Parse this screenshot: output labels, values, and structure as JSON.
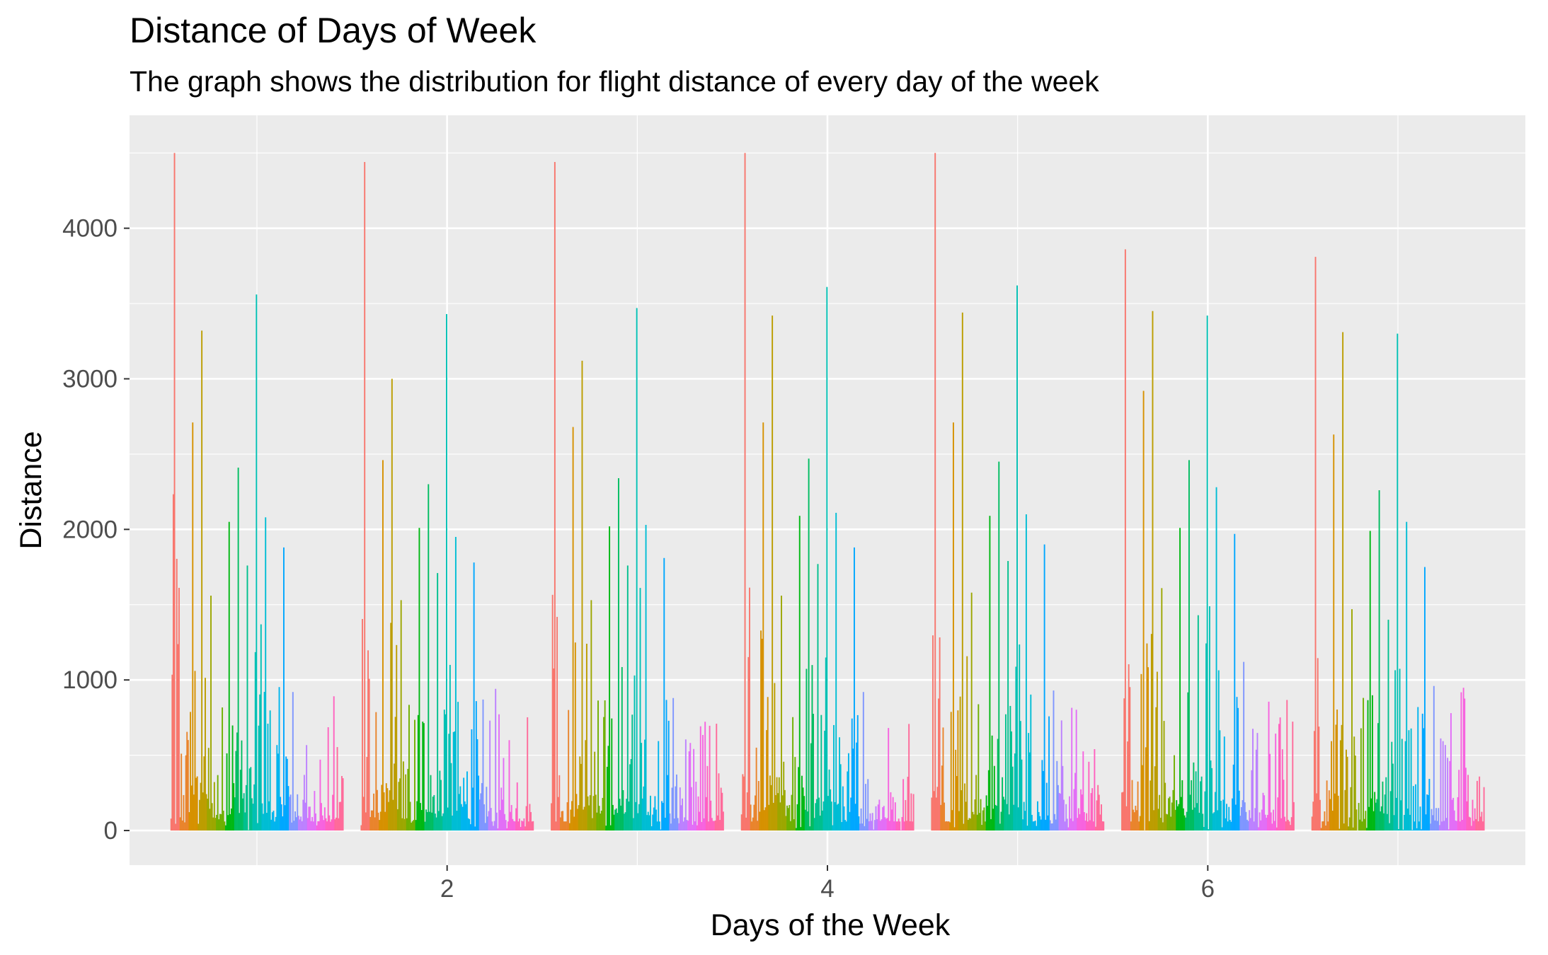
{
  "chart_data": {
    "type": "bar",
    "title": "Distance of Days of Week",
    "subtitle": "The graph shows the distribution for flight distance of every day of the week",
    "xlabel": "Days of the Week",
    "ylabel": "Distance",
    "xlim": [
      0.33,
      7.67
    ],
    "ylim": [
      -230,
      4750
    ],
    "x_ticks": [
      2,
      4,
      6
    ],
    "y_ticks": [
      0,
      1000,
      2000,
      3000,
      4000
    ],
    "grid": true,
    "legend": "none",
    "color_by": "hour",
    "hours": [
      5,
      6,
      7,
      8,
      9,
      10,
      11,
      12,
      13,
      14,
      15,
      16,
      17,
      18,
      19,
      20,
      21,
      22,
      23
    ],
    "days": [
      {
        "day": 1,
        "peaks": [
          {
            "hour": 5,
            "value": 4500
          },
          {
            "hour": 7,
            "value": 2710
          },
          {
            "hour": 8,
            "value": 3320
          },
          {
            "hour": 9,
            "value": 1560
          },
          {
            "hour": 11,
            "value": 2050
          },
          {
            "hour": 12,
            "value": 2410
          },
          {
            "hour": 13,
            "value": 1760
          },
          {
            "hour": 14,
            "value": 3560
          },
          {
            "hour": 15,
            "value": 2080
          },
          {
            "hour": 17,
            "value": 1880
          },
          {
            "hour": 18,
            "value": 920
          }
        ]
      },
      {
        "day": 2,
        "peaks": [
          {
            "hour": 5,
            "value": 4440
          },
          {
            "hour": 7,
            "value": 2460
          },
          {
            "hour": 8,
            "value": 3000
          },
          {
            "hour": 9,
            "value": 1530
          },
          {
            "hour": 11,
            "value": 2010
          },
          {
            "hour": 12,
            "value": 2300
          },
          {
            "hour": 13,
            "value": 1710
          },
          {
            "hour": 14,
            "value": 3430
          },
          {
            "hour": 15,
            "value": 1950
          },
          {
            "hour": 17,
            "value": 1780
          },
          {
            "hour": 18,
            "value": 870
          }
        ]
      },
      {
        "day": 3,
        "peaks": [
          {
            "hour": 5,
            "value": 4440
          },
          {
            "hour": 7,
            "value": 2680
          },
          {
            "hour": 8,
            "value": 3120
          },
          {
            "hour": 9,
            "value": 1530
          },
          {
            "hour": 11,
            "value": 2020
          },
          {
            "hour": 12,
            "value": 2340
          },
          {
            "hour": 13,
            "value": 1760
          },
          {
            "hour": 14,
            "value": 3470
          },
          {
            "hour": 15,
            "value": 2030
          },
          {
            "hour": 17,
            "value": 1810
          },
          {
            "hour": 18,
            "value": 880
          }
        ]
      },
      {
        "day": 4,
        "peaks": [
          {
            "hour": 5,
            "value": 4500
          },
          {
            "hour": 7,
            "value": 2710
          },
          {
            "hour": 8,
            "value": 3420
          },
          {
            "hour": 9,
            "value": 1560
          },
          {
            "hour": 11,
            "value": 2090
          },
          {
            "hour": 12,
            "value": 2470
          },
          {
            "hour": 13,
            "value": 1770
          },
          {
            "hour": 14,
            "value": 3610
          },
          {
            "hour": 15,
            "value": 2110
          },
          {
            "hour": 17,
            "value": 1880
          },
          {
            "hour": 18,
            "value": 920
          }
        ]
      },
      {
        "day": 5,
        "peaks": [
          {
            "hour": 5,
            "value": 4500
          },
          {
            "hour": 7,
            "value": 2710
          },
          {
            "hour": 8,
            "value": 3440
          },
          {
            "hour": 9,
            "value": 1580
          },
          {
            "hour": 11,
            "value": 2090
          },
          {
            "hour": 12,
            "value": 2450
          },
          {
            "hour": 13,
            "value": 1790
          },
          {
            "hour": 14,
            "value": 3620
          },
          {
            "hour": 15,
            "value": 2100
          },
          {
            "hour": 17,
            "value": 1900
          },
          {
            "hour": 18,
            "value": 930
          }
        ]
      },
      {
        "day": 6,
        "peaks": [
          {
            "hour": 5,
            "value": 3860
          },
          {
            "hour": 7,
            "value": 2920
          },
          {
            "hour": 8,
            "value": 3450
          },
          {
            "hour": 9,
            "value": 1610
          },
          {
            "hour": 11,
            "value": 2010
          },
          {
            "hour": 12,
            "value": 2460
          },
          {
            "hour": 13,
            "value": 1430
          },
          {
            "hour": 14,
            "value": 3420
          },
          {
            "hour": 15,
            "value": 2280
          },
          {
            "hour": 17,
            "value": 1970
          },
          {
            "hour": 18,
            "value": 1120
          }
        ]
      },
      {
        "day": 7,
        "peaks": [
          {
            "hour": 5,
            "value": 3810
          },
          {
            "hour": 7,
            "value": 2630
          },
          {
            "hour": 8,
            "value": 3310
          },
          {
            "hour": 9,
            "value": 1470
          },
          {
            "hour": 11,
            "value": 1990
          },
          {
            "hour": 12,
            "value": 2260
          },
          {
            "hour": 13,
            "value": 1400
          },
          {
            "hour": 14,
            "value": 3300
          },
          {
            "hour": 15,
            "value": 2050
          },
          {
            "hour": 17,
            "value": 1750
          },
          {
            "hour": 18,
            "value": 960
          }
        ]
      }
    ]
  }
}
